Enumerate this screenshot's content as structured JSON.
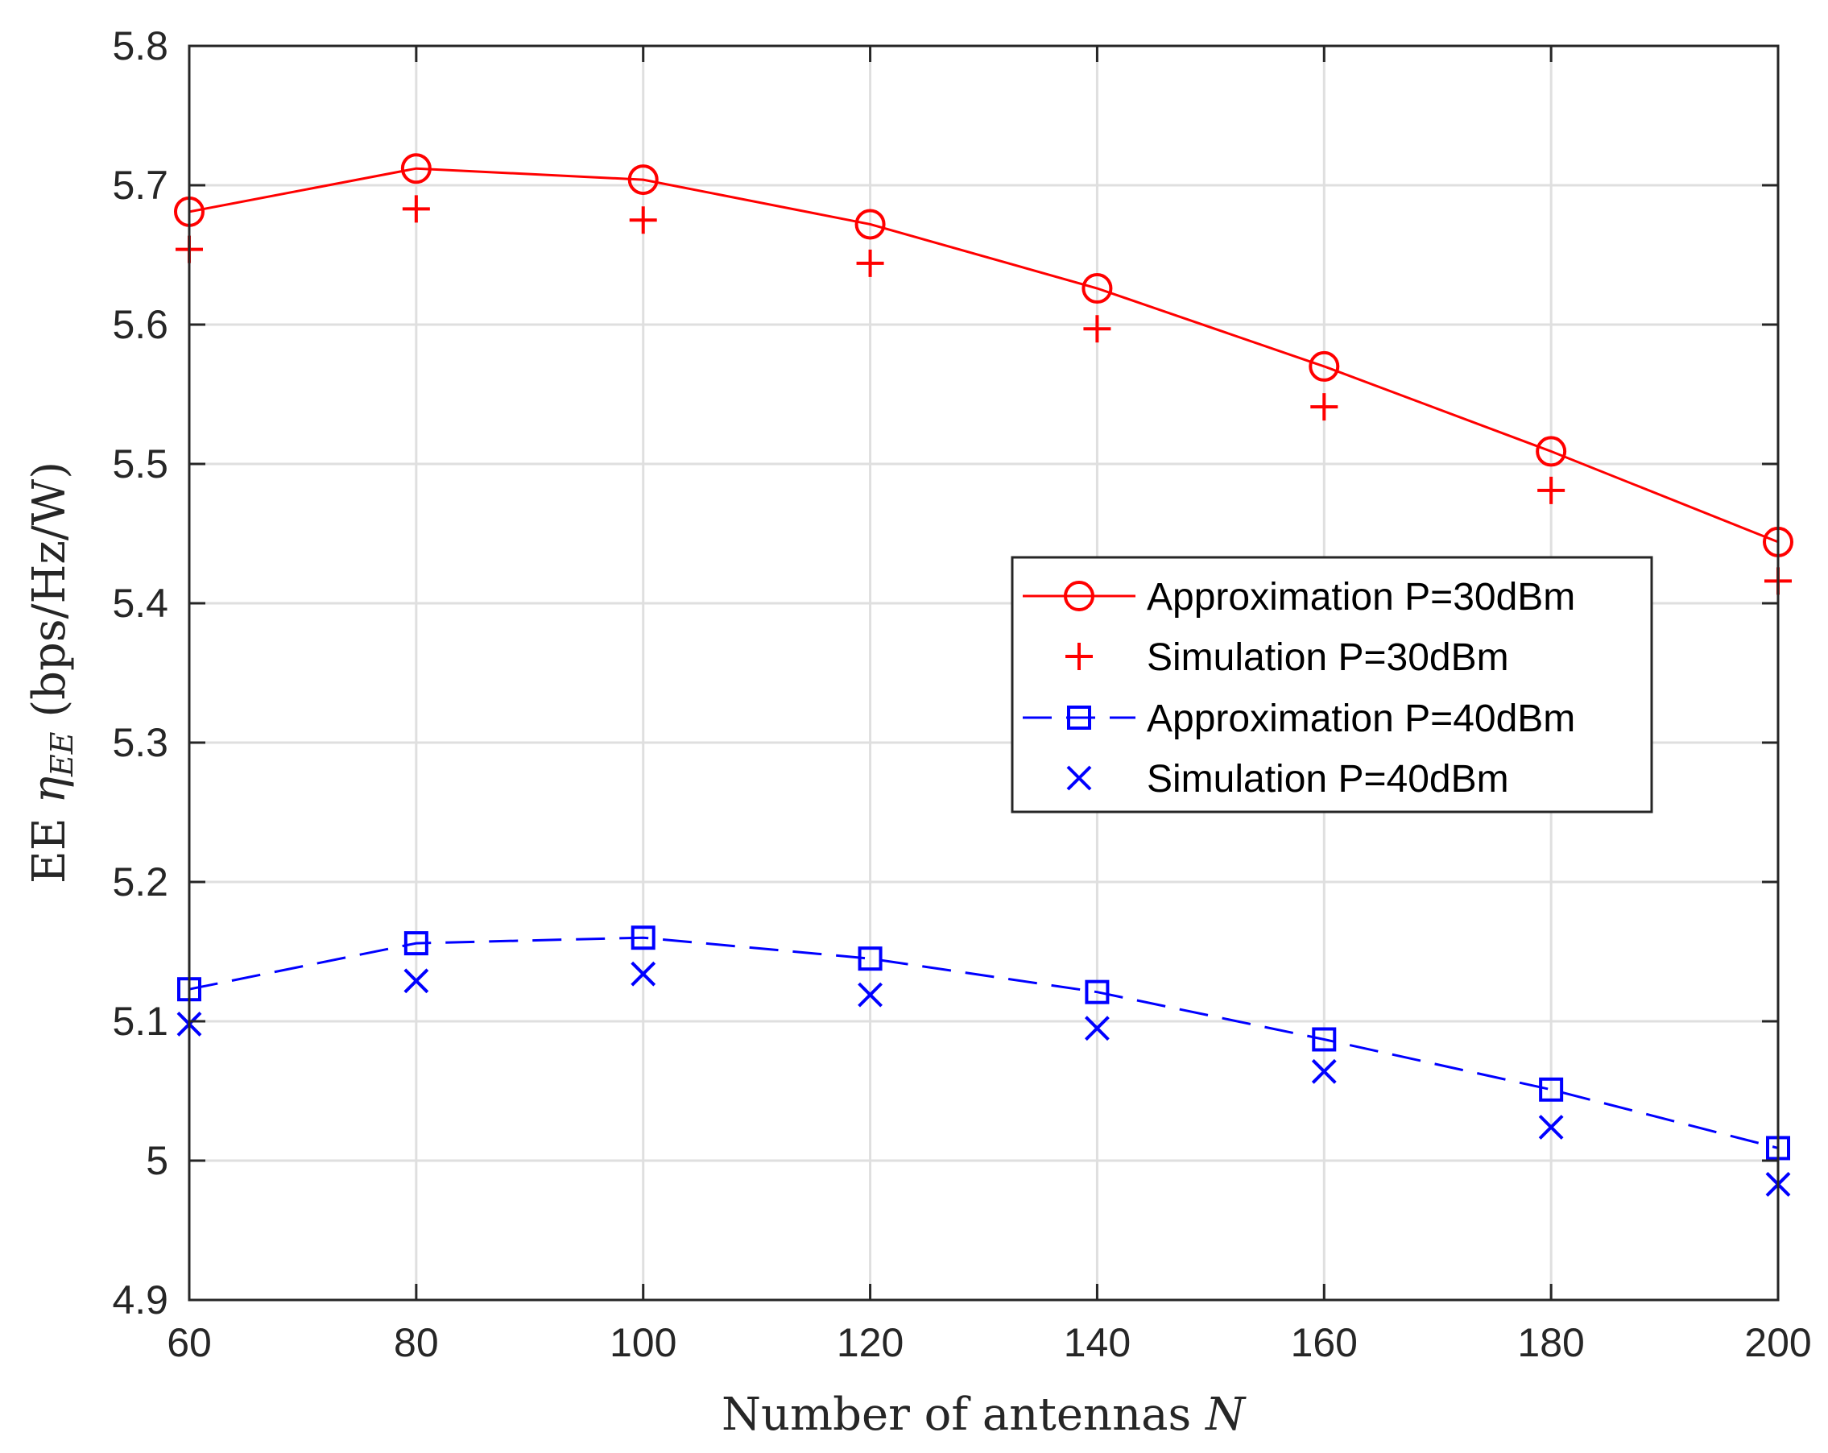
{
  "chart_data": {
    "type": "line",
    "xlabel": "Number of antennas N",
    "xlabel_parts": {
      "text": "Number of antennas ",
      "variable": "N"
    },
    "ylabel": "EE η_EE (bps/Hz/W)",
    "ylabel_parts": {
      "prefix": "EE ",
      "symbol": "η",
      "subscript": "EE",
      "unit": " (bps/Hz/W)"
    },
    "xlim": [
      60,
      200
    ],
    "ylim": [
      4.9,
      5.8
    ],
    "xticks": [
      60,
      80,
      100,
      120,
      140,
      160,
      180,
      200
    ],
    "yticks": [
      4.9,
      5.0,
      5.1,
      5.2,
      5.3,
      5.4,
      5.5,
      5.6,
      5.7,
      5.8
    ],
    "ytick_labels": [
      "4.9",
      "5",
      "5.1",
      "5.2",
      "5.3",
      "5.4",
      "5.5",
      "5.6",
      "5.7",
      "5.8"
    ],
    "grid": true,
    "legend_position": "center-right",
    "x": [
      60,
      80,
      100,
      120,
      140,
      160,
      180,
      200
    ],
    "series": [
      {
        "name": "Approximation P=30dBm",
        "color": "#ff0000",
        "marker": "circle",
        "line": "solid",
        "values": [
          5.681,
          5.712,
          5.704,
          5.672,
          5.626,
          5.57,
          5.509,
          5.444
        ]
      },
      {
        "name": "Simulation P=30dBm",
        "color": "#ff0000",
        "marker": "plus",
        "line": "none",
        "values": [
          5.654,
          5.683,
          5.675,
          5.644,
          5.597,
          5.541,
          5.481,
          5.416
        ]
      },
      {
        "name": "Approximation P=40dBm",
        "color": "#0000ff",
        "marker": "square",
        "line": "dashed",
        "values": [
          5.123,
          5.156,
          5.16,
          5.145,
          5.121,
          5.087,
          5.051,
          5.009
        ]
      },
      {
        "name": "Simulation P=40dBm",
        "color": "#0000ff",
        "marker": "x",
        "line": "none",
        "values": [
          5.098,
          5.129,
          5.134,
          5.119,
          5.095,
          5.064,
          5.024,
          4.983
        ]
      }
    ]
  }
}
